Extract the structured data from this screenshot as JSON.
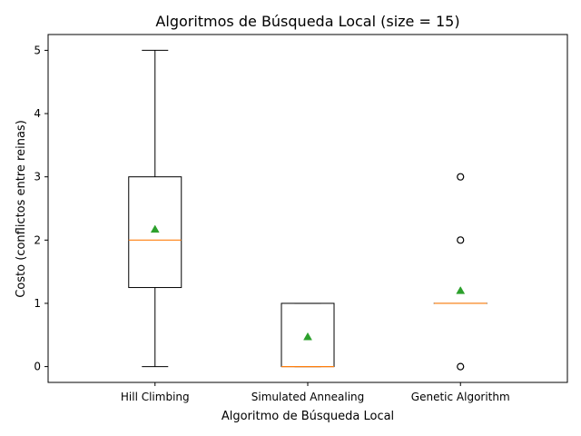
{
  "chart_data": {
    "type": "box",
    "title": "Algoritmos de Búsqueda Local (size = 15)",
    "xlabel": "Algoritmo de Búsqueda Local",
    "ylabel": "Costo (conflictos entre reinas)",
    "ylim": [
      -0.25,
      5.25
    ],
    "yticks": [
      0,
      1,
      2,
      3,
      4,
      5
    ],
    "grid": false,
    "categories": [
      "Hill Climbing",
      "Simulated Annealing",
      "Genetic Algorithm"
    ],
    "boxes": [
      {
        "q1": 1.25,
        "median": 2,
        "q3": 3,
        "whisker_low": 0,
        "whisker_high": 5,
        "mean": 2.17,
        "outliers": []
      },
      {
        "q1": 0,
        "median": 0,
        "q3": 1,
        "whisker_low": 0,
        "whisker_high": 1,
        "mean": 0.47,
        "outliers": []
      },
      {
        "q1": 1,
        "median": 1,
        "q3": 1,
        "whisker_low": 1,
        "whisker_high": 1,
        "mean": 1.2,
        "outliers": [
          0,
          2,
          3
        ]
      }
    ],
    "colors": {
      "box": "#000000",
      "median": "#ff7f0e",
      "mean": "#2ca02c",
      "outlier": "#000000"
    }
  }
}
